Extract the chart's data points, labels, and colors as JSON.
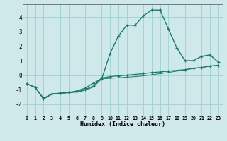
{
  "xlabel": "Humidex (Indice chaleur)",
  "bg_color": "#cfe8ea",
  "grid_color": "#9fcfcf",
  "line_color": "#1a7a6e",
  "xlim": [
    -0.5,
    23.5
  ],
  "ylim": [
    -2.8,
    4.9
  ],
  "xticks": [
    0,
    1,
    2,
    3,
    4,
    5,
    6,
    7,
    8,
    9,
    10,
    11,
    12,
    13,
    14,
    15,
    16,
    17,
    18,
    19,
    20,
    21,
    22,
    23
  ],
  "yticks": [
    -2,
    -1,
    0,
    1,
    2,
    3,
    4
  ],
  "series1_x": [
    0,
    1,
    2,
    3,
    4,
    5,
    6,
    7,
    8,
    9,
    10,
    11,
    12,
    13,
    14,
    15,
    16,
    17,
    18,
    19,
    20,
    21,
    22,
    23
  ],
  "series1_y": [
    -0.6,
    -0.85,
    -1.6,
    -1.3,
    -1.25,
    -1.2,
    -1.1,
    -0.9,
    -0.55,
    -0.25,
    1.5,
    2.7,
    3.45,
    3.45,
    4.1,
    4.5,
    4.5,
    3.2,
    1.9,
    1.0,
    1.0,
    1.3,
    1.4,
    0.9
  ],
  "series2_x": [
    0,
    1,
    2,
    3,
    4,
    5,
    6,
    7,
    8,
    9,
    10,
    11,
    12,
    13,
    14,
    15,
    16,
    17,
    18,
    19,
    20,
    21,
    22,
    23
  ],
  "series2_y": [
    -0.6,
    -0.85,
    -1.65,
    -1.3,
    -1.25,
    -1.2,
    -1.15,
    -1.0,
    -0.75,
    -0.2,
    -0.1,
    -0.05,
    0.0,
    0.05,
    0.1,
    0.18,
    0.22,
    0.28,
    0.33,
    0.38,
    0.48,
    0.53,
    0.63,
    0.68
  ],
  "series3_x": [
    0,
    1,
    2,
    3,
    4,
    5,
    6,
    7,
    8,
    9,
    10,
    11,
    12,
    13,
    14,
    15,
    16,
    17,
    18,
    19,
    20,
    21,
    22,
    23
  ],
  "series3_y": [
    -0.6,
    -0.85,
    -1.65,
    -1.32,
    -1.27,
    -1.22,
    -1.18,
    -1.05,
    -0.82,
    -0.25,
    -0.22,
    -0.18,
    -0.14,
    -0.1,
    -0.05,
    0.03,
    0.1,
    0.18,
    0.28,
    0.36,
    0.46,
    0.53,
    0.61,
    0.7
  ]
}
